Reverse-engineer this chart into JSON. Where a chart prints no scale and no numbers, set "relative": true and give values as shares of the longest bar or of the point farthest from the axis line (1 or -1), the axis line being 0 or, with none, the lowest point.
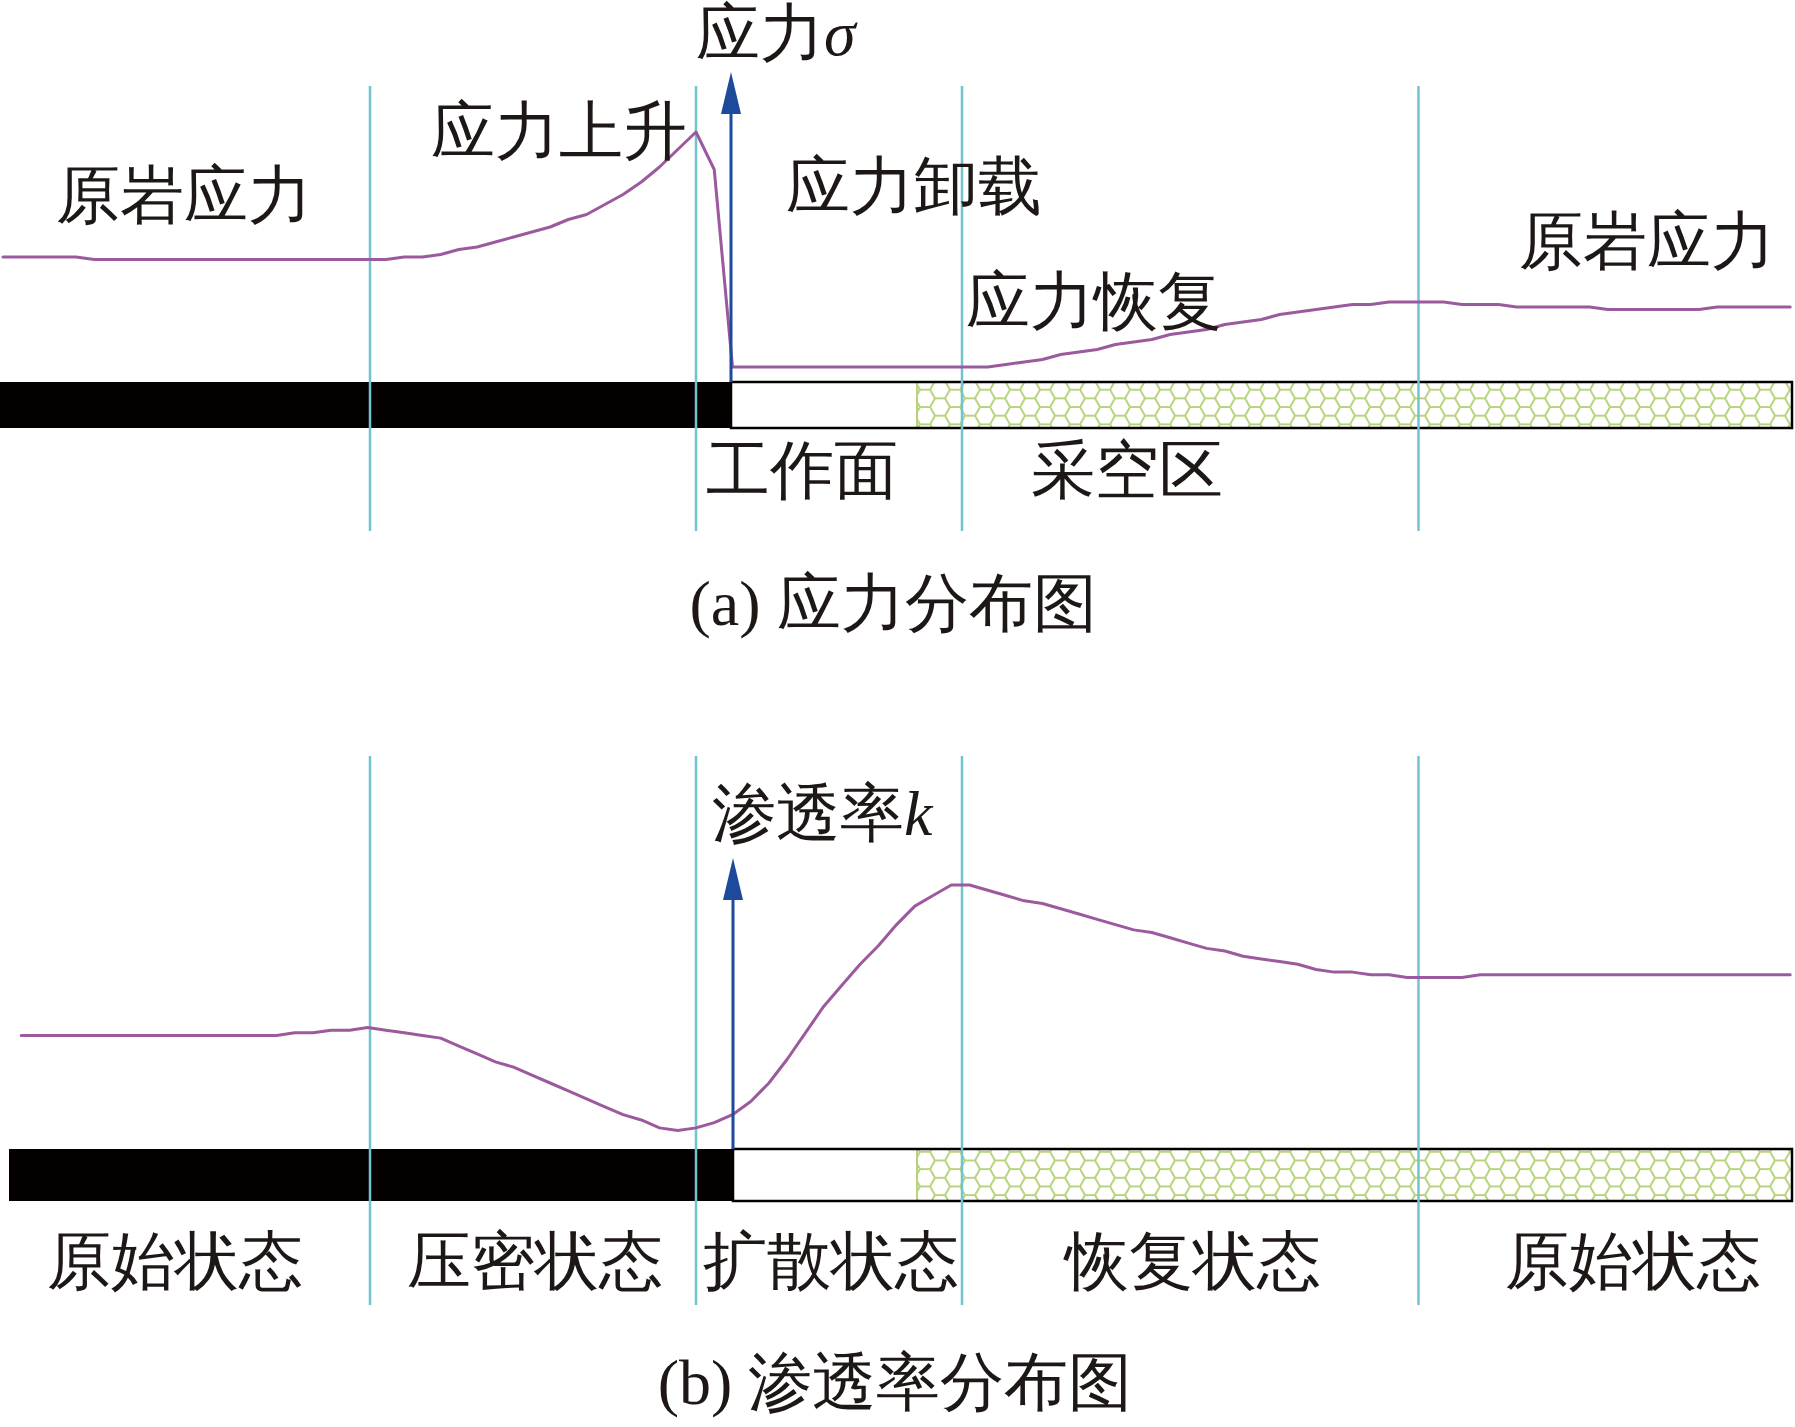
{
  "chart_data": [
    {
      "type": "line",
      "relative": true,
      "title": "(a) 应力分布图",
      "ylabel": "应力σ",
      "categories": [
        null,
        null,
        null,
        null,
        null,
        null,
        null,
        null,
        null,
        null,
        null,
        null,
        null,
        null,
        null,
        null,
        null,
        null,
        null,
        null,
        null,
        null,
        null,
        null,
        null,
        null,
        null,
        null,
        null,
        null,
        null,
        null,
        null,
        null,
        null,
        null,
        null,
        null,
        null,
        null,
        null,
        null,
        null,
        null,
        null,
        null,
        null,
        null,
        null,
        null,
        null,
        null,
        null,
        null,
        null,
        null,
        null,
        null,
        null,
        null,
        null,
        null,
        null,
        null,
        null,
        null,
        null,
        null,
        null,
        null,
        null,
        null,
        null,
        null,
        null,
        null,
        null,
        null,
        null,
        null,
        null,
        null,
        null,
        null,
        null,
        null,
        null,
        null,
        null,
        null,
        null,
        null,
        null,
        null,
        null,
        null,
        null,
        null,
        null
      ],
      "series": [
        {
          "color": "#9c5a9e",
          "values": [
            0.5,
            0.5,
            0.5,
            0.5,
            0.5,
            0.49,
            0.49,
            0.49,
            0.49,
            0.49,
            0.49,
            0.49,
            0.49,
            0.49,
            0.49,
            0.49,
            0.49,
            0.49,
            0.49,
            0.49,
            0.49,
            0.49,
            0.5,
            0.5,
            0.51,
            0.53,
            0.54,
            0.56,
            0.58,
            0.6,
            0.62,
            0.65,
            0.67,
            0.71,
            0.75,
            0.8,
            0.86,
            0.93,
            1,
            0.85,
            0.06,
            0.06,
            0.06,
            0.06,
            0.06,
            0.06,
            0.06,
            0.06,
            0.06,
            0.06,
            0.06,
            0.06,
            0.06,
            0.06,
            0.06,
            0.07,
            0.08,
            0.09,
            0.11,
            0.12,
            0.13,
            0.15,
            0.16,
            0.17,
            0.19,
            0.2,
            0.21,
            0.23,
            0.24,
            0.25,
            0.27,
            0.28,
            0.29,
            0.3,
            0.31,
            0.31,
            0.32,
            0.32,
            0.32,
            0.32,
            0.31,
            0.31,
            0.31,
            0.3,
            0.3,
            0.3,
            0.3,
            0.3,
            0.29,
            0.29,
            0.29,
            0.29,
            0.29,
            0.29,
            0.3,
            0.3,
            0.3,
            0.3,
            0.3
          ]
        }
      ],
      "annotations": [
        "原岩应力",
        "应力上升",
        "应力卸载",
        "应力恢复",
        "原岩应力",
        "工作面",
        "采空区"
      ]
    },
    {
      "type": "line",
      "relative": true,
      "title": "(b) 渗透率分布图",
      "ylabel": "渗透率k",
      "categories": [
        null,
        null,
        null,
        null,
        null,
        null,
        null,
        null,
        null,
        null,
        null,
        null,
        null,
        null,
        null,
        null,
        null,
        null,
        null,
        null,
        null,
        null,
        null,
        null,
        null,
        null,
        null,
        null,
        null,
        null,
        null,
        null,
        null,
        null,
        null,
        null,
        null,
        null,
        null,
        null,
        null,
        null,
        null,
        null,
        null,
        null,
        null,
        null,
        null,
        null,
        null,
        null,
        null,
        null,
        null,
        null,
        null,
        null,
        null,
        null,
        null,
        null,
        null,
        null,
        null,
        null,
        null,
        null,
        null,
        null,
        null,
        null,
        null,
        null,
        null,
        null,
        null,
        null,
        null,
        null,
        null,
        null,
        null,
        null,
        null,
        null,
        null,
        null,
        null,
        null,
        null,
        null,
        null,
        null,
        null,
        null,
        null,
        null,
        null
      ],
      "series": [
        {
          "color": "#9c5a9e",
          "values": [
            null,
            0.43,
            0.43,
            0.43,
            0.43,
            0.43,
            0.43,
            0.43,
            0.43,
            0.43,
            0.43,
            0.43,
            0.43,
            0.43,
            0.43,
            0.43,
            0.44,
            0.44,
            0.45,
            0.45,
            0.46,
            0.45,
            0.44,
            0.43,
            0.42,
            0.39,
            0.36,
            0.33,
            0.31,
            0.28,
            0.25,
            0.22,
            0.19,
            0.16,
            0.13,
            0.11,
            0.08,
            0.07,
            0.08,
            0.1,
            0.13,
            0.18,
            0.25,
            0.34,
            0.44,
            0.54,
            0.62,
            0.7,
            0.77,
            0.85,
            0.92,
            0.96,
            1,
            1,
            0.98,
            0.96,
            0.94,
            0.93,
            0.91,
            0.89,
            0.87,
            0.85,
            0.83,
            0.82,
            0.8,
            0.78,
            0.76,
            0.75,
            0.73,
            0.72,
            0.71,
            0.7,
            0.68,
            0.67,
            0.67,
            0.66,
            0.66,
            0.65,
            0.65,
            0.65,
            0.65,
            0.66,
            0.66,
            0.66,
            0.66,
            0.66,
            0.66,
            0.66,
            0.66,
            0.66,
            0.66,
            0.66,
            0.66,
            0.66,
            0.66,
            0.66,
            0.66,
            0.66,
            0.66
          ]
        }
      ],
      "annotations": [
        "原始状态",
        "压密状态",
        "扩散状态",
        "恢复状态",
        "原始状态"
      ]
    }
  ]
}
